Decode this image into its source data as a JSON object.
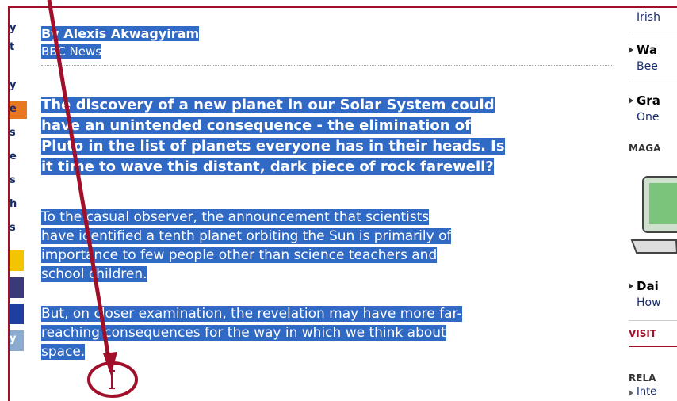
{
  "left_nav": [
    "y",
    "t",
    "y",
    "e",
    "s",
    "e",
    "s",
    "h",
    "s",
    "y"
  ],
  "article": {
    "byline": "By Alexis Akwagyiram",
    "source": "BBC News",
    "paragraphs": [
      {
        "lines": [
          "The discovery of a new planet in our Solar System could",
          "have an unintended consequence - the elimination of",
          "Pluto in the list of planets everyone has in their heads. Is",
          "it time to wave this distant, dark piece of rock farewell?"
        ]
      },
      {
        "lines": [
          "To the casual observer, the announcement that scientists",
          "have identified a tenth planet orbiting the Sun is primarily of",
          "importance to few people other than science teachers and",
          "school children."
        ]
      },
      {
        "lines": [
          "But, on closer examination, the revelation may have more far-",
          "reaching consequences for the way in which we think about",
          "space."
        ]
      }
    ]
  },
  "sidebar": {
    "top": "Irish",
    "item1": {
      "title": "Wa",
      "sub": "Bee"
    },
    "item2": {
      "title": "Gra",
      "sub": "One"
    },
    "magazine": "MAGA",
    "item3": {
      "title": "Dai",
      "sub": "How"
    },
    "visit": "VISIT",
    "related": "RELA",
    "related_item": "Inte"
  }
}
